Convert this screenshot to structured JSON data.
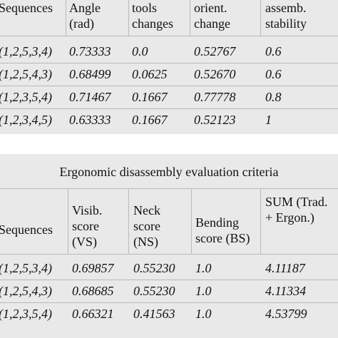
{
  "table1": {
    "header": [
      "Sequences",
      "Angle\n(rad)",
      "tools\nchanges",
      "orient.\nchange",
      "assemb.\nstability"
    ],
    "rows": [
      [
        "(1,2,5,3,4)",
        "0.73333",
        "0.0",
        "0.52767",
        "0.6"
      ],
      [
        "(1,2,5,4,3)",
        "0.68499",
        "0.0625",
        "0.52670",
        "0.6"
      ],
      [
        "(1,2,3,5,4)",
        "0.71467",
        "0.1667",
        "0.77778",
        "0.8"
      ],
      [
        "(1,2,3,4,5)",
        "0.63333",
        "0.1667",
        "0.52123",
        "1"
      ]
    ]
  },
  "table2": {
    "title": "Ergonomic disassembly evaluation criteria",
    "header": [
      "Sequences",
      "Visib.\nscore\n(VS)",
      "Neck\nscore\n(NS)",
      "Bending\nscore (BS)",
      "SUM (Trad.\n+ Ergon.)"
    ],
    "rows": [
      [
        "(1,2,5,3,4)",
        "0.69857",
        "0.55230",
        "1.0",
        "4.11187"
      ],
      [
        "(1,2,5,4,3)",
        "0.68685",
        "0.55230",
        "1.0",
        "4.11334"
      ],
      [
        "(1,2,3,5,4)",
        "0.66321",
        "0.41563",
        "1.0",
        "4.53799"
      ]
    ]
  }
}
